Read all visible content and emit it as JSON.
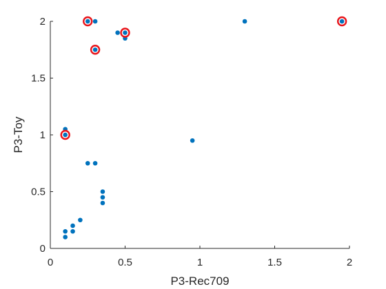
{
  "chart_data": {
    "type": "scatter",
    "xlabel": "P3-Rec709",
    "ylabel": "P3-Toy",
    "xlim": [
      0,
      2
    ],
    "ylim": [
      0,
      2
    ],
    "xticks": [
      "0",
      "0.5",
      "1",
      "1.5",
      "2"
    ],
    "yticks": [
      "0",
      "0.5",
      "1",
      "1.5",
      "2"
    ],
    "grid": false,
    "colors": {
      "points": "#0072BD",
      "highlight": "#E8141A",
      "axis": "#262626"
    },
    "series": [
      {
        "points": [
          {
            "x": 0.1,
            "y": 0.1
          },
          {
            "x": 0.1,
            "y": 0.15
          },
          {
            "x": 0.15,
            "y": 0.15
          },
          {
            "x": 0.15,
            "y": 0.2
          },
          {
            "x": 0.2,
            "y": 0.25
          },
          {
            "x": 0.35,
            "y": 0.4
          },
          {
            "x": 0.35,
            "y": 0.45
          },
          {
            "x": 0.35,
            "y": 0.5
          },
          {
            "x": 0.25,
            "y": 0.75
          },
          {
            "x": 0.3,
            "y": 0.75
          },
          {
            "x": 0.95,
            "y": 0.95
          },
          {
            "x": 0.1,
            "y": 1.0
          },
          {
            "x": 0.1,
            "y": 1.05
          },
          {
            "x": 0.3,
            "y": 1.75
          },
          {
            "x": 0.5,
            "y": 1.85
          },
          {
            "x": 0.45,
            "y": 1.9
          },
          {
            "x": 0.5,
            "y": 1.9
          },
          {
            "x": 0.25,
            "y": 2.0
          },
          {
            "x": 0.3,
            "y": 2.0
          },
          {
            "x": 1.3,
            "y": 2.0
          },
          {
            "x": 1.95,
            "y": 2.0
          }
        ]
      },
      {
        "highlighted": true,
        "points": [
          {
            "x": 0.1,
            "y": 1.0
          },
          {
            "x": 0.25,
            "y": 2.0
          },
          {
            "x": 0.3,
            "y": 1.75
          },
          {
            "x": 0.5,
            "y": 1.9
          },
          {
            "x": 1.95,
            "y": 2.0
          }
        ]
      }
    ]
  }
}
